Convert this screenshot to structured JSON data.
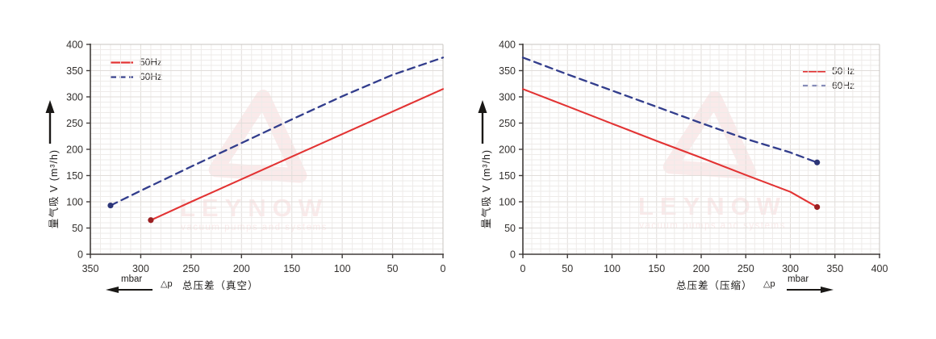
{
  "watermark": {
    "brand": "LEYNOW",
    "tagline": "vacuum pumps and systems",
    "color": "#f7d9d9"
  },
  "colors": {
    "series_50hz": "#e23333",
    "series_60hz": "#323d8c",
    "marker_50hz": "#9b2022",
    "marker_60hz": "#2c3577",
    "axis": "#403c3a",
    "tick_text": "#33302e",
    "grid_minor": "#eeebe9",
    "grid_major": "#e1ddda",
    "plot_border": "#c9c4c1",
    "background": "#ffffff"
  },
  "chart_data": [
    {
      "type": "line",
      "id": "vacuum",
      "title": "",
      "ylabel": "吸气量 V (m³/h)",
      "ylabel_display": "量气吸 V (m³/h)",
      "xlabel_unit": "mbar",
      "xlabel_dp": "△p",
      "xlabel_caption": "总压差（真空）",
      "x_arrow_direction": "left",
      "x_axis_reversed": true,
      "xlim": [
        350,
        0
      ],
      "ylim": [
        0,
        400
      ],
      "x_ticks": [
        350,
        300,
        250,
        200,
        150,
        100,
        50,
        0
      ],
      "y_ticks": [
        0,
        50,
        100,
        150,
        200,
        250,
        300,
        350,
        400
      ],
      "grid_minor_step": 10,
      "grid": "on",
      "legend_position": "top-left",
      "legend": [
        {
          "label": "50Hz",
          "style": "solid",
          "color": "#e23333"
        },
        {
          "label": "60Hz",
          "style": "dashed",
          "color": "#323d8c"
        }
      ],
      "series": [
        {
          "name": "50Hz",
          "style": "solid",
          "color": "#e23333",
          "marker_color": "#9b2022",
          "marker_point": [
            290,
            65
          ],
          "points": [
            [
              290,
              65
            ],
            [
              250,
              100
            ],
            [
              200,
              143
            ],
            [
              150,
              186
            ],
            [
              100,
              229
            ],
            [
              50,
              272
            ],
            [
              0,
              315
            ]
          ]
        },
        {
          "name": "60Hz",
          "style": "dashed",
          "color": "#323d8c",
          "marker_color": "#2c3577",
          "marker_point": [
            330,
            93
          ],
          "points": [
            [
              330,
              93
            ],
            [
              300,
              121
            ],
            [
              250,
              167
            ],
            [
              200,
              212
            ],
            [
              150,
              257
            ],
            [
              100,
              301
            ],
            [
              50,
              342
            ],
            [
              0,
              375
            ]
          ]
        }
      ]
    },
    {
      "type": "line",
      "id": "compression",
      "title": "",
      "ylabel": "吸气量 V (m³/h)",
      "ylabel_display": "量气吸 V (m³/h)",
      "xlabel_unit": "mbar",
      "xlabel_dp": "△p",
      "xlabel_caption": "总压差（压缩）",
      "x_arrow_direction": "right",
      "x_axis_reversed": false,
      "xlim": [
        0,
        400
      ],
      "ylim": [
        0,
        400
      ],
      "x_ticks": [
        0,
        50,
        100,
        150,
        200,
        250,
        300,
        350,
        400
      ],
      "y_ticks": [
        0,
        50,
        100,
        150,
        200,
        250,
        300,
        350,
        400
      ],
      "grid_minor_step": 10,
      "grid": "on",
      "legend_position": "top-right",
      "legend": [
        {
          "label": "50Hz",
          "style": "solid",
          "color": "#e23333"
        },
        {
          "label": "60Hz",
          "style": "dashed",
          "color": "#323d8c"
        }
      ],
      "series": [
        {
          "name": "50Hz",
          "style": "solid",
          "color": "#e23333",
          "marker_color": "#9b2022",
          "marker_point": [
            330,
            90
          ],
          "points": [
            [
              0,
              315
            ],
            [
              50,
              282
            ],
            [
              100,
              249
            ],
            [
              150,
              216
            ],
            [
              200,
              184
            ],
            [
              250,
              151
            ],
            [
              300,
              119
            ],
            [
              330,
              90
            ]
          ]
        },
        {
          "name": "60Hz",
          "style": "dashed",
          "color": "#323d8c",
          "marker_color": "#2c3577",
          "marker_point": [
            330,
            175
          ],
          "points": [
            [
              0,
              375
            ],
            [
              50,
              343
            ],
            [
              100,
              312
            ],
            [
              150,
              281
            ],
            [
              200,
              250
            ],
            [
              250,
              220
            ],
            [
              300,
              194
            ],
            [
              330,
              175
            ]
          ]
        }
      ]
    }
  ]
}
